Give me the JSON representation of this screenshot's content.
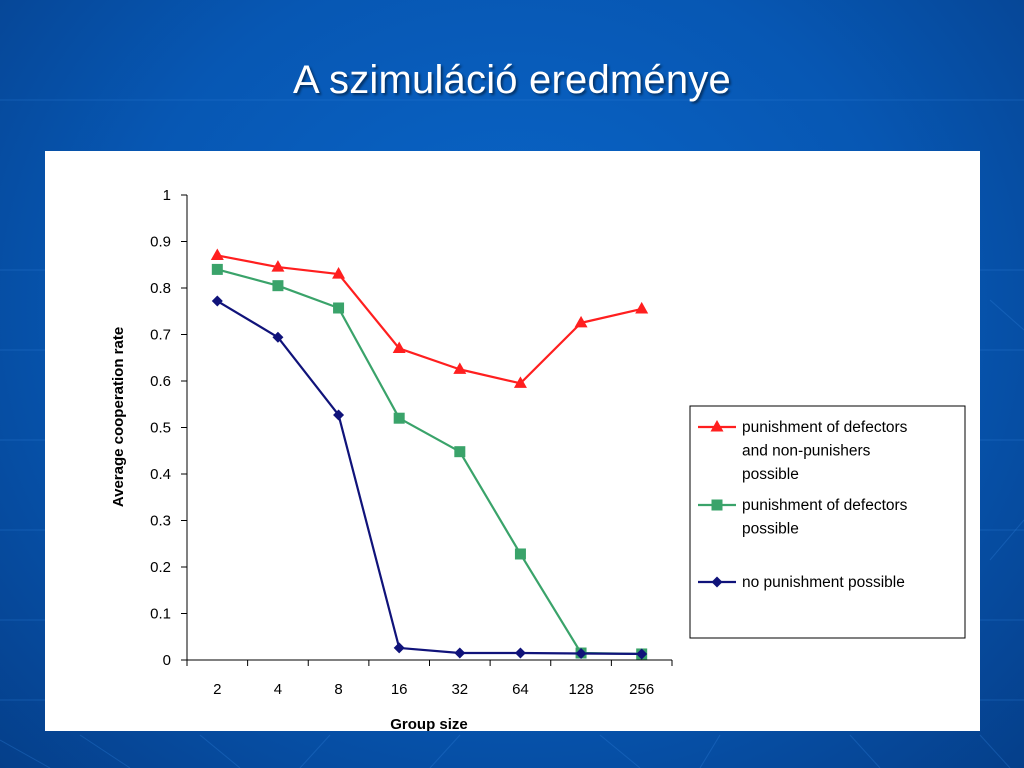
{
  "slide": {
    "title": "A szimuláció eredménye"
  },
  "chart_data": {
    "type": "line",
    "title": "",
    "xlabel": "Group size",
    "ylabel": "Average cooperation rate",
    "categories": [
      "2",
      "4",
      "8",
      "16",
      "32",
      "64",
      "128",
      "256"
    ],
    "ylim": [
      0,
      1
    ],
    "yticks": [
      "0",
      "0.1",
      "0.2",
      "0.3",
      "0.4",
      "0.5",
      "0.6",
      "0.7",
      "0.8",
      "0.9",
      "1"
    ],
    "grid": false,
    "legend_position": "right",
    "series": [
      {
        "name": "punishment of defectors and non-punishers possible",
        "legend_lines": [
          "punishment of defectors",
          "and non-punishers",
          "possible"
        ],
        "color": "#ff1f1f",
        "marker": "triangle",
        "values": [
          0.87,
          0.845,
          0.83,
          0.67,
          0.625,
          0.595,
          0.725,
          0.755
        ]
      },
      {
        "name": "punishment of defectors possible",
        "legend_lines": [
          "punishment of defectors",
          "possible"
        ],
        "color": "#3aa36a",
        "marker": "square",
        "values": [
          0.84,
          0.805,
          0.757,
          0.52,
          0.448,
          0.228,
          0.015,
          0.013
        ]
      },
      {
        "name": "no punishment possible",
        "legend_lines": [
          "no punishment possible"
        ],
        "color": "#10137a",
        "marker": "diamond",
        "values": [
          0.772,
          0.694,
          0.527,
          0.026,
          0.015,
          0.015,
          0.014,
          0.013
        ]
      }
    ]
  }
}
